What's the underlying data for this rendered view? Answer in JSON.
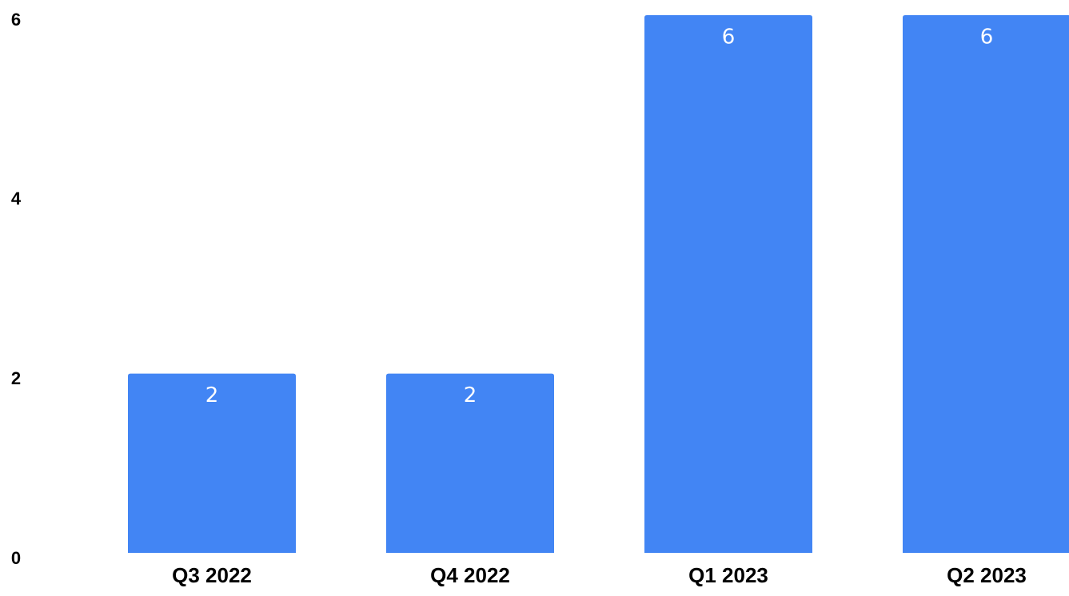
{
  "chart_data": {
    "type": "bar",
    "title": "",
    "xlabel": "",
    "ylabel": "",
    "categories": [
      "Q3 2022",
      "Q4 2022",
      "Q1 2023",
      "Q2 2023"
    ],
    "values": [
      2,
      2,
      6,
      6
    ],
    "data_labels": [
      "2",
      "2",
      "6",
      "6"
    ],
    "ylim": [
      0,
      6
    ],
    "yticks": [
      0,
      2,
      4,
      6
    ],
    "ytick_labels": [
      "0",
      "2",
      "4",
      "6"
    ],
    "grid": false,
    "legend": "none",
    "bar_color": "#4285F4",
    "data_label_color": "#FFFFFF"
  }
}
